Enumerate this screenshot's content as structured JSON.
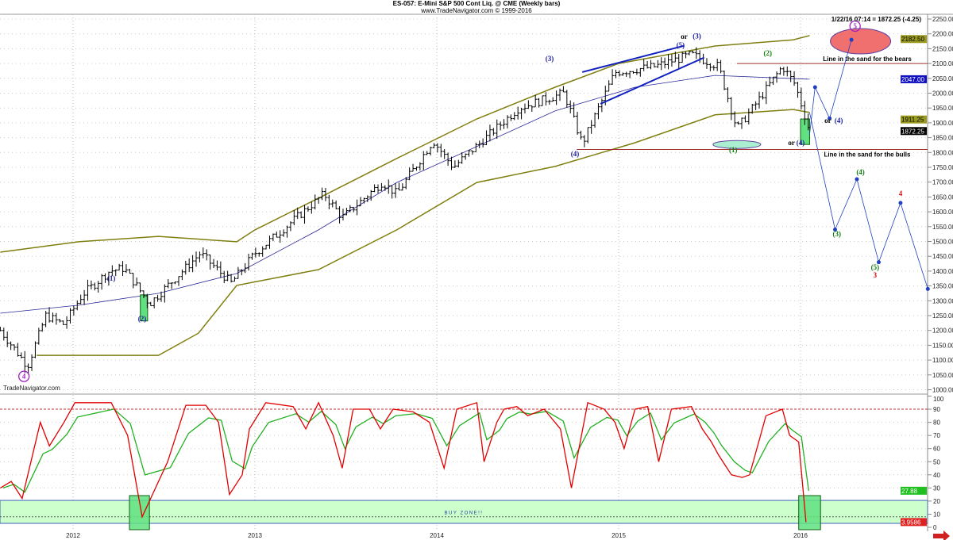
{
  "header": {
    "title": "ES-057:  E-Mini S&P 500 Cont Liq. @ CME  (Weekly bars)",
    "subtitle": "www.TradeNavigator.com © 1999-2016"
  },
  "quote": "1/22/16 07:14 = 1872.25 (-4.25)",
  "watermark": "TradeNavigator.com",
  "colors": {
    "bars": "#000000",
    "band": "#7f7f10",
    "ma": "#2a2a9a",
    "stoch_k": "#e00000",
    "stoch_d": "#20b020",
    "buy_zone": "#ccffcc",
    "sand_line": "#a03030",
    "projection": "#2040c0",
    "wave_blue": "#1a1aa0",
    "wave_green": "#108010",
    "wave_red": "#d01010",
    "wave_purple": "#a020c0"
  },
  "chart_data": [
    {
      "type": "ohlc",
      "series_name": "ES-057 Weekly",
      "x_ticks": [
        "2012",
        "2013",
        "2014",
        "2015",
        "2016"
      ],
      "y_ticks": [
        "2250.00",
        "2200.00",
        "2150.00",
        "2100.00",
        "2050.00",
        "2000.00",
        "1950.00",
        "1900.00",
        "1850.00",
        "1800.00",
        "1750.00",
        "1700.00",
        "1650.00",
        "1600.00",
        "1550.00",
        "1500.00",
        "1450.00",
        "1400.00",
        "1350.00",
        "1300.00",
        "1250.00",
        "1200.00",
        "1150.00",
        "1100.00",
        "1050.00",
        "1000.00"
      ],
      "ylim": [
        1000,
        2250
      ],
      "price_path": [
        [
          2011.6,
          1200
        ],
        [
          2011.75,
          1080
        ],
        [
          2011.85,
          1250
        ],
        [
          2011.95,
          1220
        ],
        [
          2012.05,
          1320
        ],
        [
          2012.2,
          1400
        ],
        [
          2012.28,
          1410
        ],
        [
          2012.42,
          1290
        ],
        [
          2012.7,
          1460
        ],
        [
          2012.87,
          1360
        ],
        [
          2013.0,
          1460
        ],
        [
          2013.38,
          1660
        ],
        [
          2013.48,
          1580
        ],
        [
          2013.7,
          1700
        ],
        [
          2013.78,
          1660
        ],
        [
          2013.98,
          1840
        ],
        [
          2014.09,
          1750
        ],
        [
          2014.45,
          1950
        ],
        [
          2014.7,
          2000
        ],
        [
          2014.8,
          1830
        ],
        [
          2014.98,
          2070
        ],
        [
          2015.2,
          2090
        ],
        [
          2015.4,
          2130
        ],
        [
          2015.55,
          2090
        ],
        [
          2015.65,
          1880
        ],
        [
          2015.75,
          1960
        ],
        [
          2015.9,
          2090
        ],
        [
          2015.97,
          2030
        ],
        [
          2016.05,
          1872
        ]
      ],
      "upper_band": [
        [
          2011.6,
          1464
        ],
        [
          2012.03,
          1499
        ],
        [
          2012.47,
          1517
        ],
        [
          2012.9,
          1499
        ],
        [
          2013.0,
          1539
        ],
        [
          2013.35,
          1646
        ],
        [
          2013.78,
          1780
        ],
        [
          2014.22,
          1913
        ],
        [
          2014.65,
          2020
        ],
        [
          2015.0,
          2100
        ],
        [
          2015.53,
          2159
        ],
        [
          2015.96,
          2180
        ],
        [
          2016.05,
          2194
        ]
      ],
      "moving_average": [
        [
          2011.6,
          1258
        ],
        [
          2012.03,
          1285
        ],
        [
          2012.47,
          1325
        ],
        [
          2012.9,
          1392
        ],
        [
          2013.35,
          1539
        ],
        [
          2013.78,
          1699
        ],
        [
          2014.22,
          1820
        ],
        [
          2014.65,
          1940
        ],
        [
          2015.09,
          2020
        ],
        [
          2015.53,
          2060
        ],
        [
          2016.05,
          2047
        ]
      ],
      "lower_band": [
        [
          2011.8,
          1116
        ],
        [
          2012.47,
          1116
        ],
        [
          2012.69,
          1191
        ],
        [
          2012.9,
          1352
        ],
        [
          2013.35,
          1405
        ],
        [
          2013.78,
          1539
        ],
        [
          2014.22,
          1699
        ],
        [
          2014.65,
          1753
        ],
        [
          2015.09,
          1833
        ],
        [
          2015.53,
          1927
        ],
        [
          2015.96,
          1945
        ],
        [
          2016.05,
          1935
        ]
      ],
      "axis_markers": [
        {
          "label": "2182.50",
          "value": 2182.5,
          "bg": "#9a9a20",
          "fg": "#000"
        },
        {
          "label": "2047.00",
          "value": 2047,
          "bg": "#1010c0",
          "fg": "#fff"
        },
        {
          "label": "1911.25",
          "value": 1911.25,
          "bg": "#9a9a20",
          "fg": "#000"
        },
        {
          "label": "1872.25",
          "value": 1872.25,
          "bg": "#000",
          "fg": "#fff"
        }
      ],
      "sand_lines": [
        {
          "label": "Line in the sand for the bears",
          "value": 2100,
          "from": 2015.65
        },
        {
          "label": "Line in the sand for the bulls",
          "value": 1810,
          "from": 2014.77
        }
      ],
      "wave_labels": [
        {
          "text": "4",
          "t": 2011.73,
          "p": 1037,
          "color": "wave_purple",
          "circle": true
        },
        {
          "text": "(1)",
          "t": 2012.21,
          "p": 1368,
          "color": "wave_blue"
        },
        {
          "text": "(2)",
          "t": 2012.38,
          "p": 1231,
          "color": "wave_blue"
        },
        {
          "text": "(3)",
          "t": 2014.62,
          "p": 2108,
          "color": "wave_blue"
        },
        {
          "text": "(4)",
          "t": 2014.76,
          "p": 1787,
          "color": "wave_blue"
        },
        {
          "text": "(5)",
          "t": 2015.34,
          "p": 2154,
          "color": "wave_blue"
        },
        {
          "text": "or",
          "t": 2015.37,
          "p": 2183,
          "color": "bars"
        },
        {
          "text": "(3)",
          "t": 2015.43,
          "p": 2185,
          "color": "wave_blue"
        },
        {
          "text": "(1)",
          "t": 2015.63,
          "p": 1801,
          "color": "wave_green"
        },
        {
          "text": "(2)",
          "t": 2015.82,
          "p": 2127,
          "color": "wave_green"
        },
        {
          "text": "or",
          "t": 2015.96,
          "p": 1825,
          "color": "bars"
        },
        {
          "text": "(4)",
          "t": 2016.0,
          "p": 1825,
          "color": "wave_blue"
        },
        {
          "text": "or",
          "t": 2016.16,
          "p": 1900,
          "color": "bars"
        },
        {
          "text": "(4)",
          "t": 2016.21,
          "p": 1900,
          "color": "wave_blue"
        },
        {
          "text": "5",
          "t": 2016.3,
          "p": 2218,
          "color": "wave_purple",
          "circle": true
        },
        {
          "text": "(3)",
          "t": 2016.2,
          "p": 1517,
          "color": "wave_green"
        },
        {
          "text": "(4)",
          "t": 2016.33,
          "p": 1726,
          "color": "wave_green"
        },
        {
          "text": "(5)",
          "t": 2016.41,
          "p": 1405,
          "color": "wave_green"
        },
        {
          "text": "3",
          "t": 2016.41,
          "p": 1378,
          "color": "wave_red"
        },
        {
          "text": "4",
          "t": 2016.55,
          "p": 1654,
          "color": "wave_red"
        }
      ],
      "ellipses": [
        {
          "t": 2016.33,
          "p": 2175,
          "fill": "#f07070"
        },
        {
          "t": 2015.65,
          "p": 1827,
          "fill": "#aaf0d0"
        }
      ],
      "price_boxes": [
        {
          "t0": 2012.37,
          "t1": 2012.41,
          "p0": 1232,
          "p1": 1320
        },
        {
          "t0": 2016.0,
          "t1": 2016.05,
          "p0": 1827,
          "p1": 1913
        }
      ],
      "trendlines": [
        [
          [
            2014.8,
            2071
          ],
          [
            2015.36,
            2160
          ]
        ],
        [
          [
            2014.9,
            1964
          ],
          [
            2015.47,
            2120
          ]
        ]
      ],
      "projections": [
        [
          [
            2016.05,
            1860
          ],
          [
            2016.08,
            2020
          ],
          [
            2016.16,
            1915
          ],
          [
            2016.28,
            2180
          ]
        ],
        [
          [
            2016.05,
            1935
          ],
          [
            2016.19,
            1540
          ],
          [
            2016.31,
            1710
          ],
          [
            2016.43,
            1430
          ],
          [
            2016.55,
            1630
          ],
          [
            2016.7,
            1340
          ]
        ]
      ]
    },
    {
      "type": "line",
      "series_name": "Stochastic",
      "y_ticks": [
        "100",
        "90",
        "80",
        "70",
        "60",
        "50",
        "40",
        "30",
        "20",
        "10",
        "0"
      ],
      "ylim": [
        0,
        100
      ],
      "overbought": 90,
      "buy_zone": [
        5,
        17.5
      ],
      "buy_zone_label": "BUY ZONE!!",
      "k": [
        [
          2011.6,
          30
        ],
        [
          2011.66,
          35
        ],
        [
          2011.72,
          22
        ],
        [
          2011.82,
          80
        ],
        [
          2011.87,
          62
        ],
        [
          2011.95,
          80
        ],
        [
          2012.01,
          95
        ],
        [
          2012.21,
          95
        ],
        [
          2012.3,
          70
        ],
        [
          2012.38,
          8
        ],
        [
          2012.52,
          50
        ],
        [
          2012.62,
          93
        ],
        [
          2012.73,
          93
        ],
        [
          2012.8,
          80
        ],
        [
          2012.86,
          25
        ],
        [
          2012.93,
          40
        ],
        [
          2012.97,
          75
        ],
        [
          2013.06,
          95
        ],
        [
          2013.21,
          92
        ],
        [
          2013.28,
          75
        ],
        [
          2013.35,
          95
        ],
        [
          2013.43,
          70
        ],
        [
          2013.48,
          45
        ],
        [
          2013.54,
          90
        ],
        [
          2013.63,
          90
        ],
        [
          2013.69,
          75
        ],
        [
          2013.76,
          90
        ],
        [
          2013.87,
          88
        ],
        [
          2013.96,
          80
        ],
        [
          2014.04,
          45
        ],
        [
          2014.11,
          90
        ],
        [
          2014.22,
          95
        ],
        [
          2014.26,
          50
        ],
        [
          2014.33,
          80
        ],
        [
          2014.37,
          90
        ],
        [
          2014.44,
          92
        ],
        [
          2014.5,
          85
        ],
        [
          2014.59,
          90
        ],
        [
          2014.68,
          75
        ],
        [
          2014.74,
          30
        ],
        [
          2014.83,
          95
        ],
        [
          2014.92,
          90
        ],
        [
          2014.98,
          80
        ],
        [
          2015.03,
          60
        ],
        [
          2015.09,
          90
        ],
        [
          2015.16,
          92
        ],
        [
          2015.22,
          50
        ],
        [
          2015.29,
          90
        ],
        [
          2015.4,
          92
        ],
        [
          2015.46,
          75
        ],
        [
          2015.51,
          65
        ],
        [
          2015.55,
          55
        ],
        [
          2015.62,
          40
        ],
        [
          2015.68,
          38
        ],
        [
          2015.72,
          40
        ],
        [
          2015.81,
          85
        ],
        [
          2015.9,
          90
        ],
        [
          2015.94,
          70
        ],
        [
          2015.99,
          65
        ],
        [
          2016.03,
          4
        ]
      ],
      "axis_markers": [
        {
          "label": "27.88",
          "value": 27.88,
          "bg": "#20c020",
          "fg": "#fff"
        },
        {
          "label": "3.9586",
          "value": 4,
          "bg": "#e02020",
          "fg": "#fff"
        }
      ],
      "buy_boxes": [
        [
          2012.31,
          2012.42
        ],
        [
          2015.99,
          2016.11
        ]
      ]
    }
  ]
}
